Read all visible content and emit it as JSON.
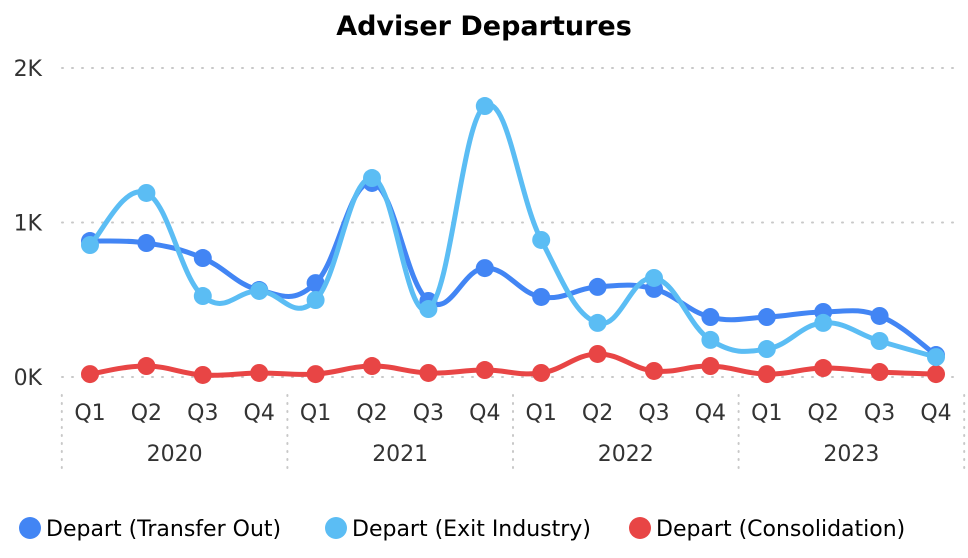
{
  "chart_data": {
    "type": "line",
    "title": "Adviser Departures",
    "xlabel": "",
    "ylabel": "",
    "ylim": [
      0,
      2000
    ],
    "y_ticks": [
      "0K",
      "1K",
      "2K"
    ],
    "y_tick_values": [
      0,
      1000,
      2000
    ],
    "grid": true,
    "legend_position": "bottom",
    "categories": [
      "Q1",
      "Q2",
      "Q3",
      "Q4",
      "Q1",
      "Q2",
      "Q3",
      "Q4",
      "Q1",
      "Q2",
      "Q3",
      "Q4",
      "Q1",
      "Q2",
      "Q3",
      "Q4"
    ],
    "years": [
      "2020",
      "2021",
      "2022",
      "2023"
    ],
    "series": [
      {
        "name": "Depart (Transfer Out)",
        "color": "#4285F4",
        "values": [
          880,
          867,
          770,
          563,
          608,
          1256,
          492,
          705,
          518,
          583,
          570,
          388,
          388,
          421,
          395,
          142
        ]
      },
      {
        "name": "Depart (Exit Industry)",
        "color": "#5BBDF4",
        "values": [
          854,
          1191,
          524,
          557,
          498,
          1288,
          440,
          1754,
          887,
          350,
          641,
          240,
          181,
          350,
          233,
          129
        ]
      },
      {
        "name": "Depart (Consolidation)",
        "color": "#E84545",
        "values": [
          19,
          71,
          13,
          26,
          19,
          71,
          26,
          45,
          26,
          149,
          39,
          71,
          19,
          58,
          32,
          19
        ]
      }
    ]
  }
}
